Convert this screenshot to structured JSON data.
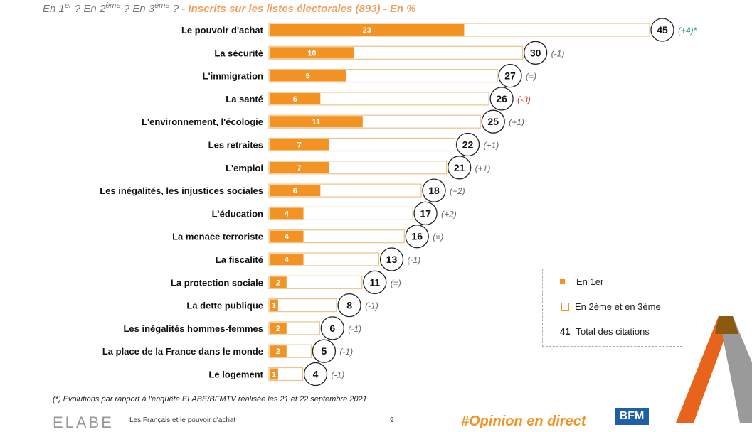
{
  "subtitle": {
    "question": "En 1er ? En 2ème ? En 3ème ? -",
    "q1": "En 1",
    "s1": "er",
    "q2": " ? En 2",
    "s2": "ème",
    "q3": " ? En 3",
    "s3": "ème",
    "q4": " ? -",
    "population": " Inscrits sur les listes électorales (893) - En %"
  },
  "chart_data": {
    "type": "bar",
    "orientation": "horizontal",
    "stacked": true,
    "categories": [
      "Le pouvoir d'achat",
      "La sécurité",
      "L'immigration",
      "La santé",
      "L'environnement, l'écologie",
      "Les retraites",
      "L'emploi",
      "Les inégalités, les injustices sociales",
      "L'éducation",
      "La menace terroriste",
      "La fiscalité",
      "La protection sociale",
      "La dette publique",
      "Les inégalités hommes-femmes",
      "La place de la France dans le monde",
      "Le logement"
    ],
    "series": [
      {
        "name": "En 1er",
        "color": "#f39324",
        "values": [
          23,
          10,
          9,
          6,
          11,
          7,
          7,
          6,
          4,
          4,
          4,
          2,
          1,
          2,
          2,
          1
        ]
      },
      {
        "name": "En 2ème et en 3ème",
        "color": "#ffffff",
        "values": [
          22,
          20,
          18,
          20,
          14,
          15,
          14,
          12,
          13,
          12,
          9,
          9,
          7,
          4,
          3,
          3
        ]
      }
    ],
    "totals": [
      45,
      30,
      27,
      26,
      25,
      22,
      21,
      18,
      17,
      16,
      13,
      11,
      8,
      6,
      5,
      4
    ],
    "total_label": "Total des citations",
    "changes": [
      "(+4)*",
      "(-1)",
      "(=)",
      "(-3)",
      "(+1)",
      "(+1)",
      "(+1)",
      "(+2)",
      "(+2)",
      "(=)",
      "(-1)",
      "(=)",
      "(-1)",
      "(-1)",
      "(-1)",
      "(-1)"
    ],
    "change_colors": {
      "up_highlight": "#2fa36b",
      "down_highlight": "#c0392b",
      "neutral": "#666666"
    },
    "legend": {
      "first": "En 1er",
      "other": "En 2ème et en 3ème",
      "total_example": "41",
      "total": "Total des citations",
      "placement": "right"
    },
    "xlim": [
      0,
      45
    ],
    "grid": false
  },
  "footnote": "(*) Evolutions par rapport à l'enquête ELABE/BFMTV réalisée les 21 et 22 septembre 2021",
  "footer": {
    "logo": "ELABE",
    "title": "Les Français et le pouvoir d'achat",
    "page": "9",
    "hashtag": "#Opinion en direct",
    "partner_logo": "BFM"
  }
}
